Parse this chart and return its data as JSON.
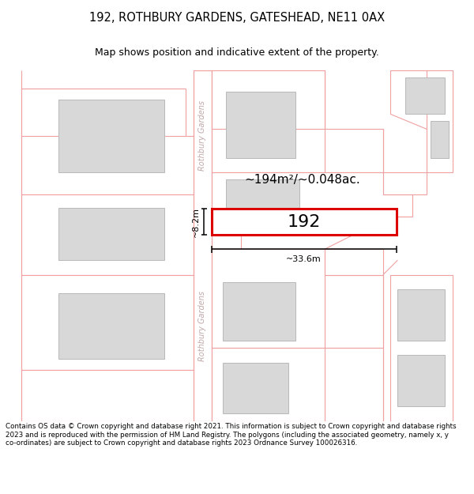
{
  "title_line1": "192, ROTHBURY GARDENS, GATESHEAD, NE11 0AX",
  "title_line2": "Map shows position and indicative extent of the property.",
  "footer_text": "Contains OS data © Crown copyright and database right 2021. This information is subject to Crown copyright and database rights 2023 and is reproduced with the permission of HM Land Registry. The polygons (including the associated geometry, namely x, y co-ordinates) are subject to Crown copyright and database rights 2023 Ordnance Survey 100026316.",
  "road_color": "#f0a0a0",
  "building_fill": "#d8d8d8",
  "building_edge": "#b8b8b8",
  "highlight_color": "#dd0000",
  "street_label_color": "#c0a8a8",
  "area_label": "~194m²/~0.048ac.",
  "width_label": "~33.6m",
  "height_label": "~8.2m",
  "property_number": "192"
}
